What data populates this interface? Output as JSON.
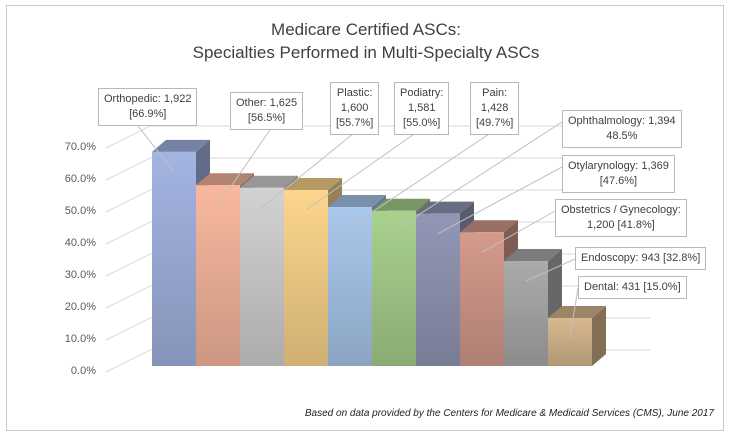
{
  "chart_data": {
    "type": "bar",
    "style": "3d-column",
    "title_line1": "Medicare Certified ASCs:",
    "title_line2": "Specialties  Performed in Multi-Specialty  ASCs",
    "categories": [
      "Orthopedic",
      "Other",
      "Plastic",
      "Podiatry",
      "Pain",
      "Ophthalmology",
      "Otylarynology",
      "Obstetrics / Gynecology",
      "Endoscopy",
      "Dental"
    ],
    "counts": [
      1922,
      1625,
      1600,
      1581,
      1428,
      1394,
      1369,
      1200,
      943,
      431
    ],
    "values": [
      66.9,
      56.5,
      55.7,
      55.0,
      49.7,
      48.5,
      47.6,
      41.8,
      32.8,
      15.0
    ],
    "colors": [
      "#a4b4e2",
      "#f8b89e",
      "#d2d2d2",
      "#fdd68c",
      "#aac8ec",
      "#a9d18e",
      "#9297b6",
      "#d49b8c",
      "#ababab",
      "#d8b98f"
    ],
    "data_labels": [
      [
        "Orthopedic: 1,922",
        "[66.9%]"
      ],
      [
        "Other: 1,625",
        "[56.5%]"
      ],
      [
        "Plastic:",
        "1,600",
        "[55.7%]"
      ],
      [
        "Podiatry:",
        "1,581",
        "[55.0%]"
      ],
      [
        "Pain:",
        "1,428",
        "[49.7%]"
      ],
      [
        "Ophthalmology: 1,394",
        "48.5%"
      ],
      [
        "Otylarynology: 1,369",
        "[47.6%]"
      ],
      [
        "Obstetrics / Gynecology:",
        "1,200 [41.8%]"
      ],
      [
        "Endoscopy: 943 [32.8%]"
      ],
      [
        "Dental: 431 [15.0%]"
      ]
    ],
    "y_ticks": [
      "0.0%",
      "10.0%",
      "20.0%",
      "30.0%",
      "40.0%",
      "50.0%",
      "60.0%",
      "70.0%"
    ],
    "ylim": [
      0,
      70
    ],
    "grid": true,
    "legend": "none",
    "source": "Based on data provided by the Centers for Medicare & Medicaid Services (CMS), June 2017"
  }
}
